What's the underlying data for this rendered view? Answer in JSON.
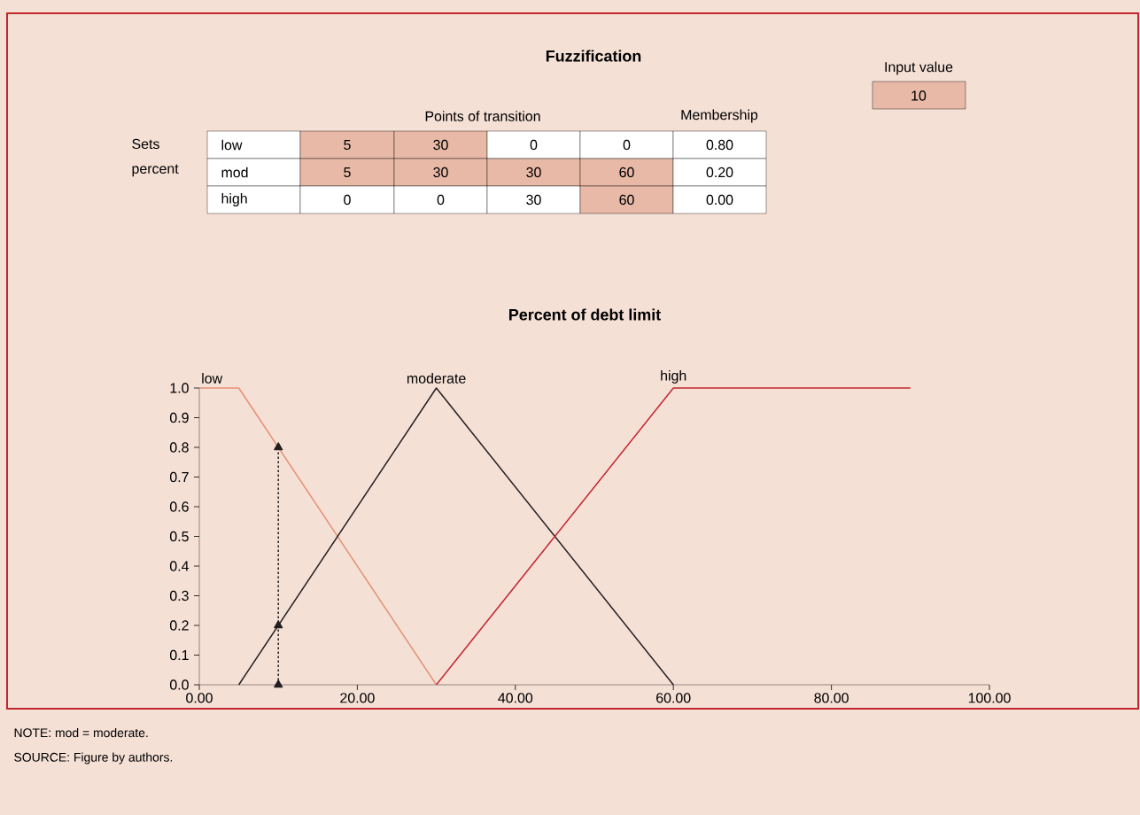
{
  "chart_data": [
    {
      "type": "other",
      "title": "Fuzzification",
      "annotations": [
        "Input value",
        "10",
        "Points of transition",
        "Membership",
        "Sets percent",
        "low",
        "5",
        "30",
        "0",
        "0",
        "0.80",
        "mod",
        "5",
        "30",
        "30",
        "60",
        "0.20",
        "high",
        "0",
        "0",
        "30",
        "60",
        "0.00"
      ]
    },
    {
      "type": "line",
      "title": "Percent of debt limit",
      "xlim": [
        0,
        100
      ],
      "ylim": [
        0,
        1
      ],
      "xticks": [
        {
          "value": 0,
          "label": "0.00"
        },
        {
          "value": 20,
          "label": "20.00"
        },
        {
          "value": 40,
          "label": "40.00"
        },
        {
          "value": 60,
          "label": "60.00"
        },
        {
          "value": 80,
          "label": "80.00"
        },
        {
          "value": 100,
          "label": "100.00"
        }
      ],
      "yticks": [
        {
          "value": 0,
          "label": "0.0"
        },
        {
          "value": 0.1,
          "label": "0.1"
        },
        {
          "value": 0.2,
          "label": "0.2"
        },
        {
          "value": 0.3,
          "label": "0.3"
        },
        {
          "value": 0.4,
          "label": "0.4"
        },
        {
          "value": 0.5,
          "label": "0.5"
        },
        {
          "value": 0.6,
          "label": "0.6"
        },
        {
          "value": 0.7,
          "label": "0.7"
        },
        {
          "value": 0.8,
          "label": "0.8"
        },
        {
          "value": 0.9,
          "label": "0.9"
        },
        {
          "value": 1,
          "label": "1.0"
        }
      ],
      "marker": "none",
      "grid": false,
      "series": [
        {
          "name": "low",
          "color": "#e59076",
          "x": [
            0,
            5,
            30
          ],
          "values": [
            1,
            1,
            0
          ]
        },
        {
          "name": "moderate",
          "color": "#231f20",
          "x": [
            5,
            30,
            60
          ],
          "values": [
            0,
            1,
            0
          ]
        },
        {
          "name": "high",
          "color": "#c1272d",
          "x": [
            30,
            60,
            90
          ],
          "values": [
            0,
            1,
            1
          ]
        },
        {
          "color": "#231f20",
          "x": [
            10,
            10,
            10
          ],
          "values": [
            0,
            0.2,
            0.8
          ],
          "line_style": "dotted",
          "marker": "triangle"
        }
      ],
      "annotations": [
        "NOTE: mod = moderate.",
        "SOURCE: Figure by authors."
      ]
    }
  ]
}
